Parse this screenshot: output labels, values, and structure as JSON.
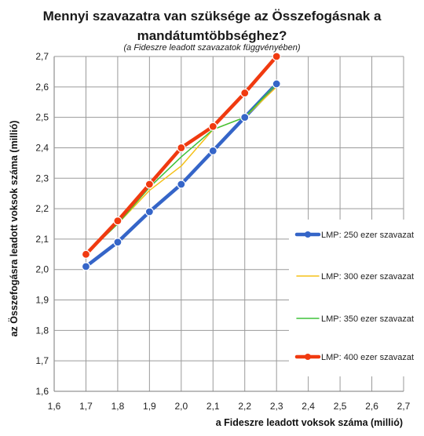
{
  "chart_data": {
    "type": "line",
    "title_line1": "Mennyi szavazatra van szüksége az Összefogásnak a",
    "title_line2": "mandátumtöbbséghez?",
    "subtitle": "(a Fideszre  leadott szavazatok függvényében)",
    "xlabel": "a Fideszre leadott voksok száma (millió)",
    "ylabel": "az Összefogásra leadott voksok száma (millió)",
    "xlim": [
      1.6,
      2.7
    ],
    "ylim": [
      1.6,
      2.7
    ],
    "xticks": [
      "1,6",
      "1,7",
      "1,8",
      "1,9",
      "2,0",
      "2,1",
      "2,2",
      "2,3",
      "2,4",
      "2,5",
      "2,6",
      "2,7"
    ],
    "yticks": [
      "1,6",
      "1,7",
      "1,8",
      "1,9",
      "2,0",
      "2,1",
      "2,2",
      "2,3",
      "2,4",
      "2,5",
      "2,6",
      "2,7"
    ],
    "grid": "both",
    "legend_position": "right",
    "x": [
      1.7,
      1.8,
      1.9,
      2.0,
      2.1,
      2.2,
      2.3
    ],
    "series": [
      {
        "name": "LMP: 250 ezer szavazat",
        "color": "#3565c8",
        "width": 4.5,
        "markers": true,
        "values": [
          2.01,
          2.09,
          2.19,
          2.28,
          2.39,
          2.5,
          2.61
        ]
      },
      {
        "name": "LMP: 300 ezer szavazat",
        "color": "#f5c018",
        "width": 1.5,
        "markers": false,
        "values": [
          2.05,
          2.15,
          2.26,
          2.34,
          2.46,
          2.5,
          2.6
        ]
      },
      {
        "name": "LMP: 350 ezer szavazat",
        "color": "#3fc23a",
        "width": 1.5,
        "markers": false,
        "values": [
          2.05,
          2.15,
          2.27,
          2.37,
          2.46,
          2.5,
          2.61
        ]
      },
      {
        "name": "LMP: 400 ezer szavazat",
        "color": "#f03a10",
        "width": 4.5,
        "markers": true,
        "values": [
          2.05,
          2.16,
          2.28,
          2.4,
          2.47,
          2.58,
          2.7
        ]
      }
    ]
  }
}
